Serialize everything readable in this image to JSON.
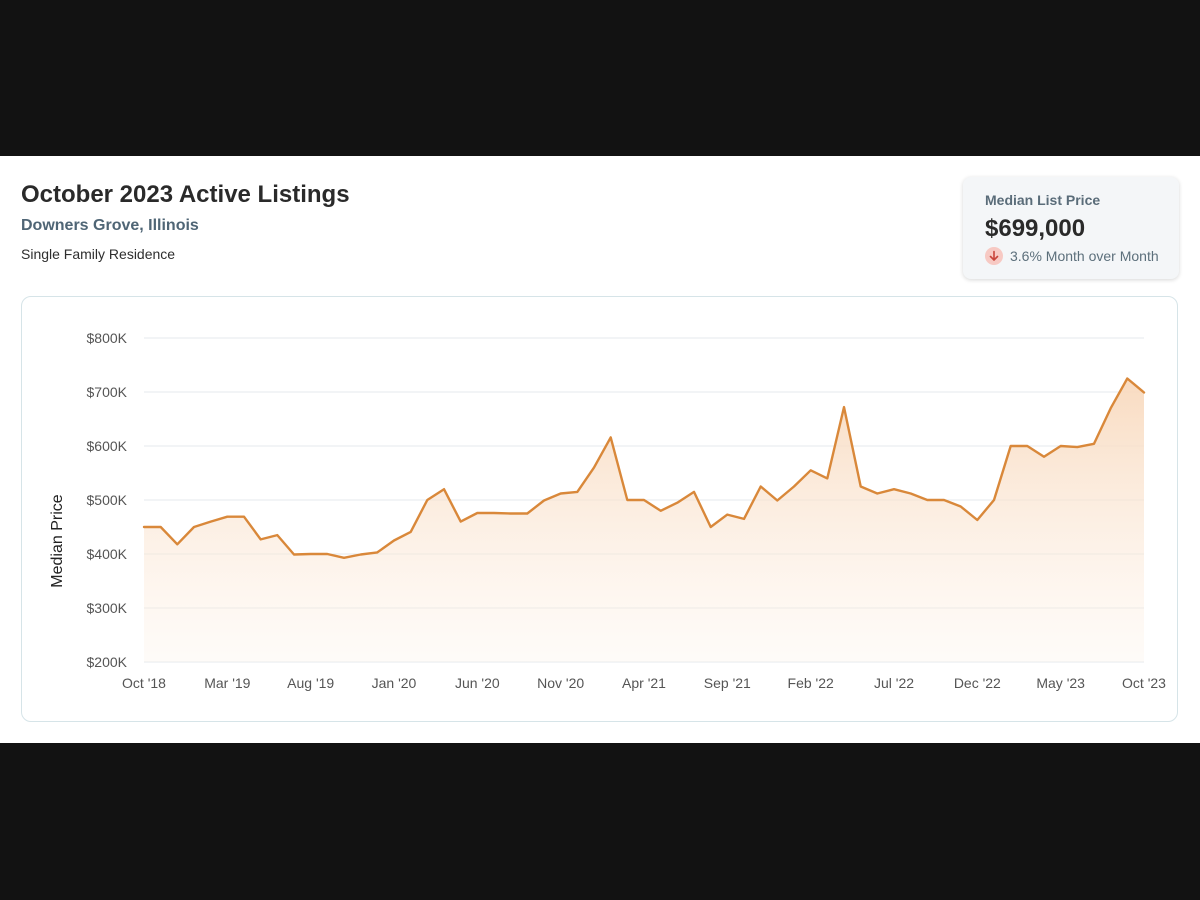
{
  "header": {
    "title": "October 2023 Active Listings",
    "location": "Downers Grove, Illinois",
    "property_type": "Single Family Residence"
  },
  "stat_card": {
    "label": "Median List Price",
    "value": "$699,000",
    "change_text": "3.6% Month over Month",
    "change_direction": "down",
    "change_icon": "arrow-down-icon"
  },
  "colors": {
    "line": "#d9883a",
    "area_top": "#f8d9bd",
    "change_badge": "#f7c9c3",
    "change_arrow": "#c8443a"
  },
  "chart_data": {
    "type": "area",
    "title": "",
    "xlabel": "",
    "ylabel": "Median Price",
    "ylim": [
      200000,
      800000
    ],
    "y_ticks": [
      200000,
      300000,
      400000,
      500000,
      600000,
      700000,
      800000
    ],
    "y_tick_labels": [
      "$200K",
      "$300K",
      "$400K",
      "$500K",
      "$600K",
      "$700K",
      "$800K"
    ],
    "x_tick_labels": [
      "Oct '18",
      "Mar '19",
      "Aug '19",
      "Jan '20",
      "Jun '20",
      "Nov '20",
      "Apr '21",
      "Sep '21",
      "Feb '22",
      "Jul '22",
      "Dec '22",
      "May '23",
      "Oct '23"
    ],
    "x_tick_dates": [
      "2018-10",
      "2019-03",
      "2019-08",
      "2020-01",
      "2020-06",
      "2020-11",
      "2021-04",
      "2021-09",
      "2022-02",
      "2022-07",
      "2022-12",
      "2023-05",
      "2023-10"
    ],
    "grid": true,
    "legend": "none",
    "series": [
      {
        "x": [
          "2018-10",
          "2018-11",
          "2018-12",
          "2019-01",
          "2019-02",
          "2019-03",
          "2019-04",
          "2019-05",
          "2019-06",
          "2019-07",
          "2019-08",
          "2019-09",
          "2019-10",
          "2019-11",
          "2019-12",
          "2020-01",
          "2020-02",
          "2020-03",
          "2020-04",
          "2020-05",
          "2020-06",
          "2020-07",
          "2020-08",
          "2020-09",
          "2020-10",
          "2020-11",
          "2020-12",
          "2021-01",
          "2021-02",
          "2021-03",
          "2021-04",
          "2021-05",
          "2021-06",
          "2021-07",
          "2021-08",
          "2021-09",
          "2021-10",
          "2021-11",
          "2021-12",
          "2022-01",
          "2022-02",
          "2022-03",
          "2022-04",
          "2022-05",
          "2022-06",
          "2022-07",
          "2022-08",
          "2022-09",
          "2022-10",
          "2022-11",
          "2022-12",
          "2023-01",
          "2023-02",
          "2023-03",
          "2023-04",
          "2023-05",
          "2023-06",
          "2023-07",
          "2023-08",
          "2023-09",
          "2023-10"
        ],
        "values": [
          450000,
          450000,
          418000,
          450000,
          460000,
          469000,
          469000,
          427000,
          435000,
          399000,
          400000,
          400000,
          393000,
          399000,
          403000,
          425000,
          441000,
          500000,
          520000,
          460000,
          476000,
          476000,
          475000,
          475000,
          499000,
          512000,
          515000,
          560000,
          616000,
          500000,
          500000,
          480000,
          495000,
          515000,
          450000,
          473000,
          465000,
          525000,
          499000,
          525000,
          555000,
          540000,
          672000,
          525000,
          512000,
          520000,
          512000,
          500000,
          500000,
          488000,
          463000,
          500000,
          600000,
          600000,
          580000,
          600000,
          598000,
          604000,
          670000,
          725000,
          699000
        ]
      }
    ]
  }
}
